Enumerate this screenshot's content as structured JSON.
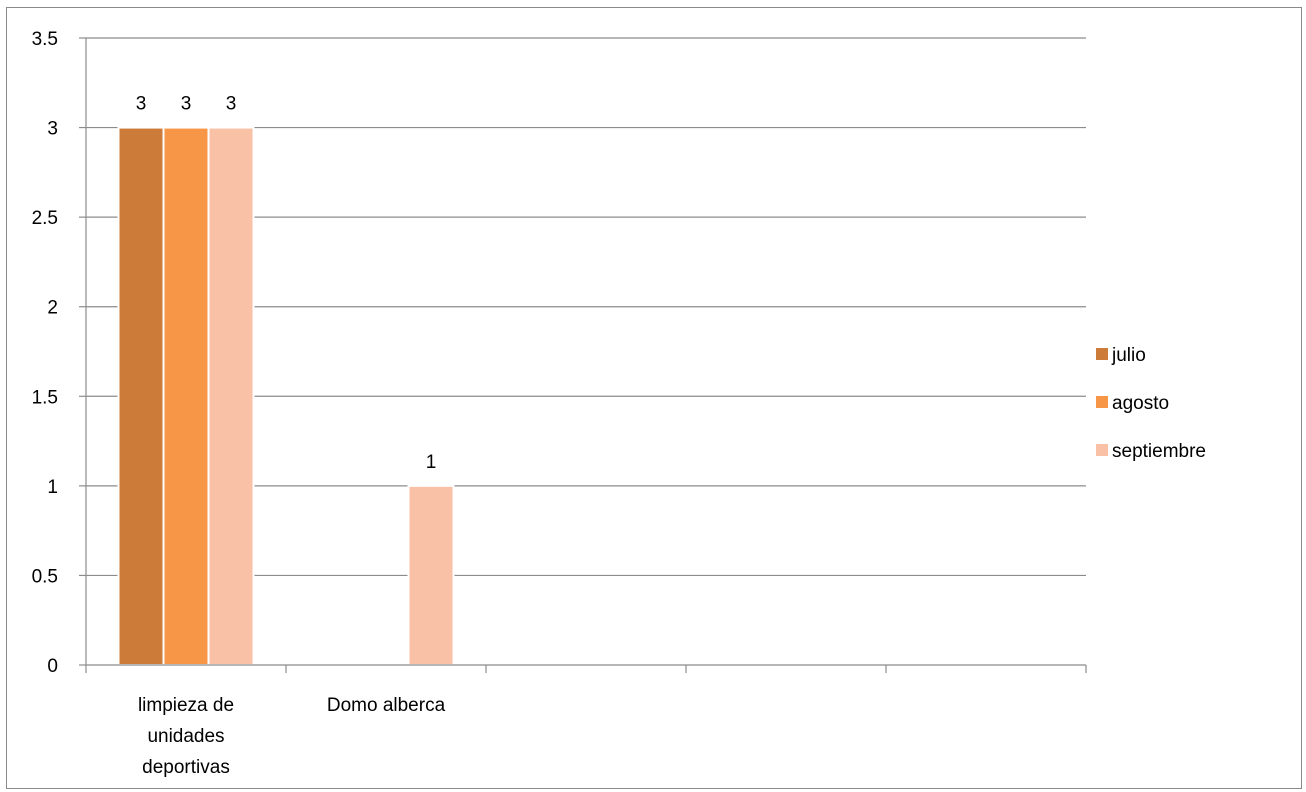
{
  "chart_data": {
    "type": "bar",
    "title": "",
    "xlabel": "",
    "ylabel": "",
    "categories": [
      "limpieza de unidades deportivas",
      "Domo alberca",
      "",
      "",
      ""
    ],
    "category_lines": [
      [
        "limpieza de",
        "unidades",
        "deportivas"
      ],
      [
        "Domo alberca"
      ],
      [],
      [],
      []
    ],
    "series": [
      {
        "name": "julio",
        "color": "#cd7b38",
        "values": [
          3,
          null,
          null,
          null,
          null
        ]
      },
      {
        "name": "agosto",
        "color": "#f79646",
        "values": [
          3,
          null,
          null,
          null,
          null
        ]
      },
      {
        "name": "septiembre",
        "color": "#f9c1a5",
        "values": [
          3,
          1,
          null,
          null,
          null
        ]
      }
    ],
    "ylim": [
      0,
      3.5
    ],
    "yticks": [
      0,
      0.5,
      1,
      1.5,
      2,
      2.5,
      3,
      3.5
    ],
    "ytick_labels": [
      "0",
      "0.5",
      "1",
      "1.5",
      "2",
      "2.5",
      "3",
      "3.5"
    ],
    "data_labels": true,
    "grid": true,
    "legend_position": "right"
  }
}
